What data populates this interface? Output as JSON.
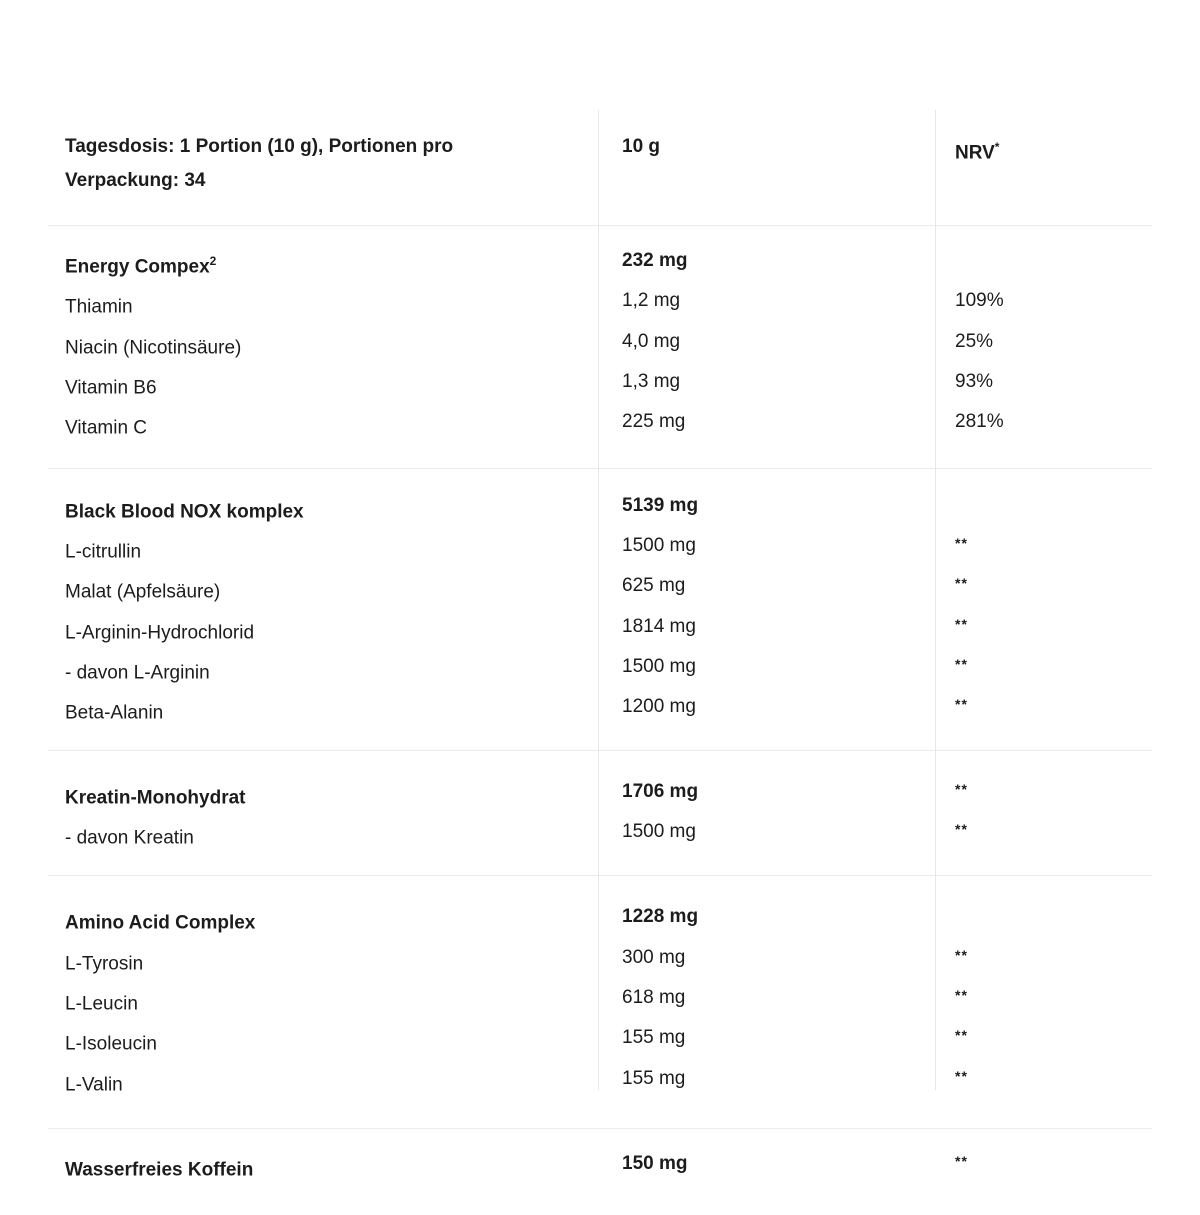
{
  "table": {
    "header": {
      "col1_line1": "Tagesdosis: 1 Portion (10 g), Portionen pro",
      "col1_line2": "Verpackung: 34",
      "col2": "10 g",
      "col3": "NRV",
      "col3_sup": "*"
    },
    "sections": [
      {
        "name": "energy-complex",
        "rows": [
          {
            "label": "Energy Compex",
            "label_sup": "2",
            "value": "232 mg",
            "nrv": "",
            "bold": true
          },
          {
            "label": "Thiamin",
            "value": "1,2 mg",
            "nrv": "109%"
          },
          {
            "label": "Niacin (Nicotinsäure)",
            "value": "4,0 mg",
            "nrv": "25%"
          },
          {
            "label": "Vitamin B6",
            "value": "1,3 mg",
            "nrv": "93%"
          },
          {
            "label": "Vitamin C",
            "value": "225 mg",
            "nrv": "281%"
          }
        ]
      },
      {
        "name": "black-blood-nox-komplex",
        "rows": [
          {
            "label": "Black Blood NOX komplex",
            "value": "5139 mg",
            "nrv": "",
            "bold": true
          },
          {
            "label": "L-citrullin",
            "value": "1500 mg",
            "nrv": "**"
          },
          {
            "label": "Malat (Apfelsäure)",
            "value": "625 mg",
            "nrv": "**"
          },
          {
            "label": "L-Arginin-Hydrochlorid",
            "value": "1814 mg",
            "nrv": "**"
          },
          {
            "label": "- davon L-Arginin",
            "value": "1500 mg",
            "nrv": "**"
          },
          {
            "label": "Beta-Alanin",
            "value": "1200 mg",
            "nrv": "**"
          }
        ]
      },
      {
        "name": "kreatin",
        "rows": [
          {
            "label": "Kreatin-Monohydrat",
            "value": "1706 mg",
            "nrv": "**",
            "bold": true
          },
          {
            "label": "- davon Kreatin",
            "value": "1500 mg",
            "nrv": "**"
          }
        ]
      },
      {
        "name": "amino-acid-complex",
        "rows": [
          {
            "label": "Amino Acid Complex",
            "value": "1228 mg",
            "nrv": "",
            "bold": true
          },
          {
            "label": "L-Tyrosin",
            "value": "300 mg",
            "nrv": "**"
          },
          {
            "label": "L-Leucin",
            "value": "618 mg",
            "nrv": "**"
          },
          {
            "label": "L-Isoleucin",
            "value": "155 mg",
            "nrv": "**"
          },
          {
            "label": "L-Valin",
            "value": "155 mg",
            "nrv": "**"
          }
        ]
      },
      {
        "name": "koffein",
        "rows": [
          {
            "label": "Wasserfreies Koffein",
            "value": "150 mg",
            "nrv": "**",
            "bold": true
          }
        ]
      }
    ]
  },
  "colors": {
    "background": "#ffffff",
    "text": "#1c1c1c",
    "divider_horizontal": "#ebebeb",
    "divider_vertical": "#e7e7e7"
  }
}
